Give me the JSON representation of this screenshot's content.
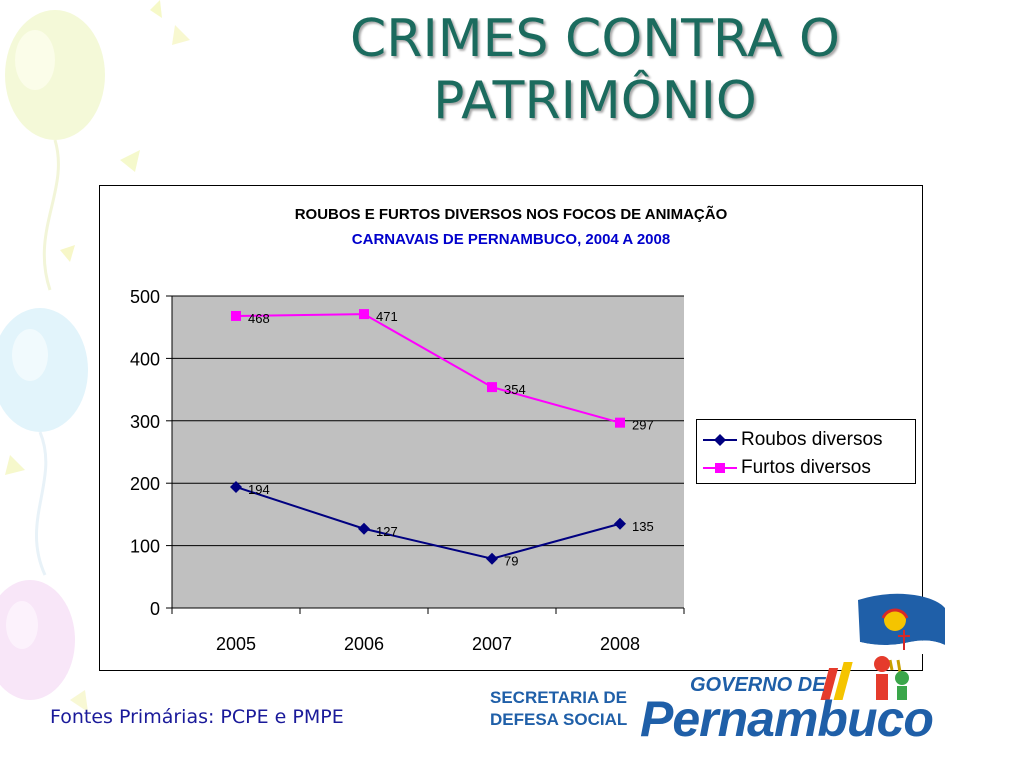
{
  "slide": {
    "title_lines": [
      "CRIMES CONTRA O",
      "PATRIMÔNIO"
    ],
    "source_note": "Fontes Primárias: PCPE e PMPE"
  },
  "logo": {
    "secretaria_line1": "SECRETARIA DE",
    "secretaria_line2": "DEFESA SOCIAL",
    "governo": "GOVERNO DE",
    "estado": "Pernambuco"
  },
  "chart_data": {
    "type": "line",
    "title": "ROUBOS E FURTOS DIVERSOS NOS FOCOS DE ANIMAÇÃO",
    "subtitle": "CARNAVAIS DE PERNAMBUCO, 2004 A 2008",
    "categories": [
      "2005",
      "2006",
      "2007",
      "2008"
    ],
    "ylim": [
      0,
      500
    ],
    "yticks": [
      0,
      100,
      200,
      300,
      400,
      500
    ],
    "grid": true,
    "legend_position": "right",
    "series": [
      {
        "name": "Roubos diversos",
        "values": [
          194,
          127,
          79,
          135
        ],
        "color": "#000080",
        "marker": "diamond"
      },
      {
        "name": "Furtos diversos",
        "values": [
          468,
          471,
          354,
          297
        ],
        "color": "#ff00ff",
        "marker": "square"
      }
    ],
    "plot_background": "#c0c0c0",
    "subtitle_color": "#0000cc"
  }
}
